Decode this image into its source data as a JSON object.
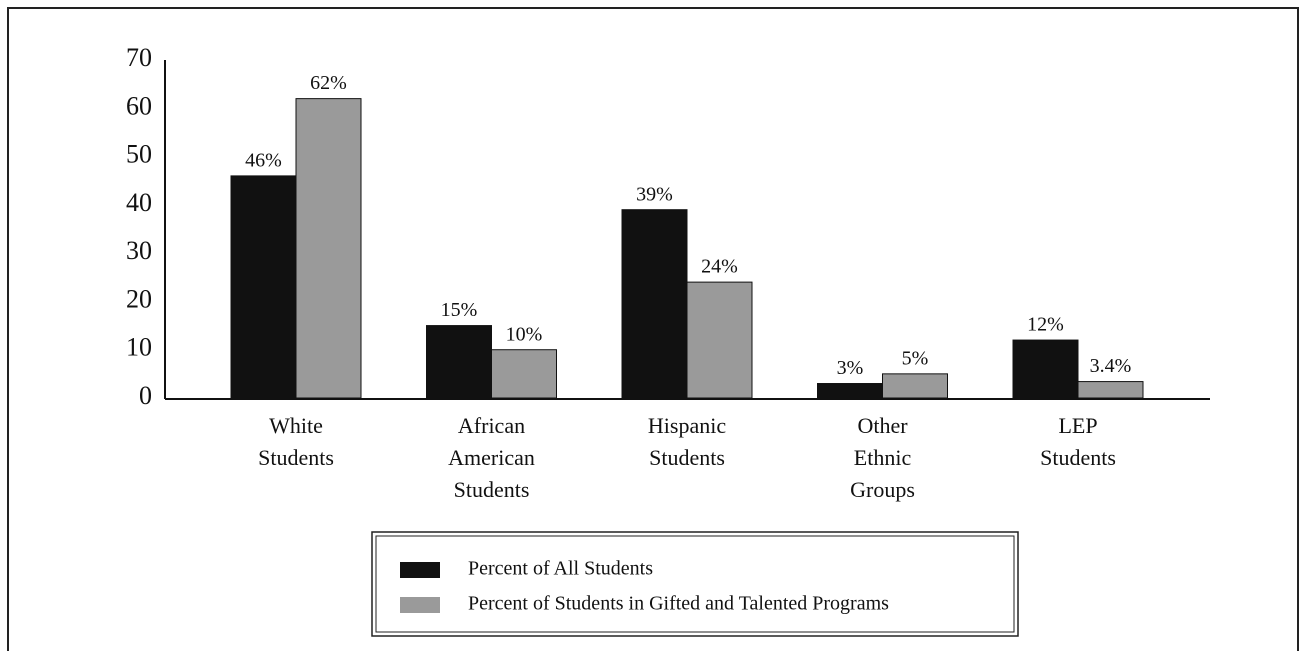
{
  "chart_data": {
    "type": "bar",
    "categories": [
      "White Students",
      "African American Students",
      "Hispanic Students",
      "Other Ethnic Groups",
      "LEP Students"
    ],
    "series": [
      {
        "name": "Percent of All Students",
        "color": "#111111",
        "values": [
          46,
          15,
          39,
          3,
          12
        ],
        "value_labels": [
          "46%",
          "15%",
          "39%",
          "3%",
          "12%"
        ]
      },
      {
        "name": "Percent of Students in Gifted and Talented Programs",
        "color": "#9a9a9a",
        "values": [
          62,
          10,
          24,
          5,
          3.4
        ],
        "value_labels": [
          "62%",
          "10%",
          "24%",
          "5%",
          "3.4%"
        ]
      }
    ],
    "ylim": [
      0,
      70
    ],
    "yticks": [
      0,
      10,
      20,
      30,
      40,
      50,
      60,
      70
    ],
    "grid": false,
    "legend": "bottom"
  }
}
